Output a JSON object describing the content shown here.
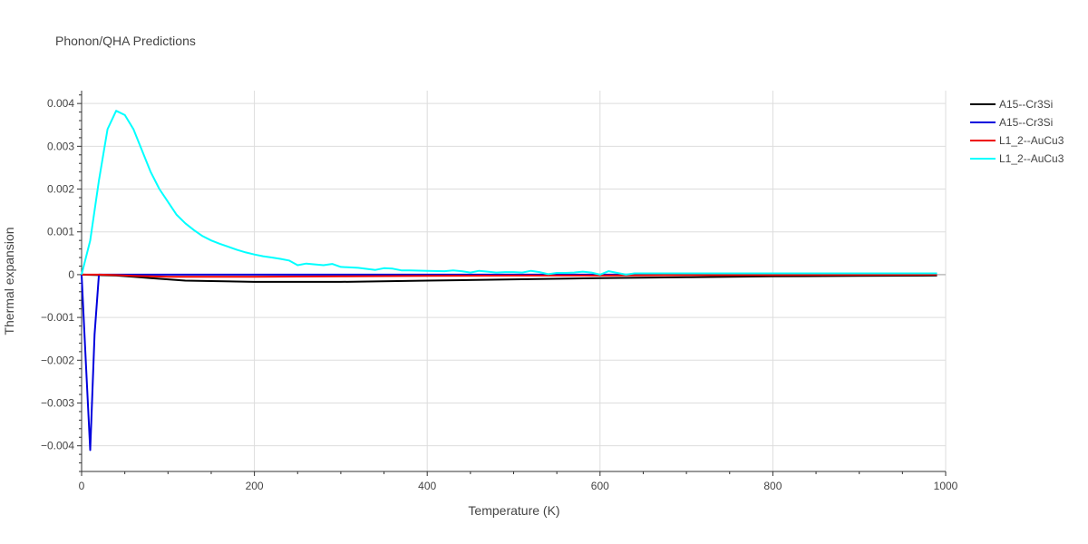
{
  "chart_data": {
    "type": "line",
    "title": "Phonon/QHA Predictions",
    "xlabel": "Temperature (K)",
    "ylabel": "Thermal expansion",
    "xlim": [
      0,
      1000
    ],
    "ylim": [
      -0.0046,
      0.0043
    ],
    "xticks": [
      0,
      200,
      400,
      600,
      800,
      1000
    ],
    "xtick_labels": [
      "0",
      "200",
      "400",
      "600",
      "800",
      "1000"
    ],
    "yticks": [
      0.004,
      0.003,
      0.002,
      0.001,
      0,
      -0.001,
      -0.002,
      -0.003,
      -0.004
    ],
    "ytick_labels": [
      "0.004",
      "0.003",
      "0.002",
      "0.001",
      "0",
      "−0.001",
      "−0.002",
      "−0.003",
      "−0.004"
    ],
    "grid": true,
    "legend_position": "top-right",
    "series": [
      {
        "name": "A15--Cr3Si",
        "color": "#000000",
        "x": [
          0,
          20,
          40,
          60,
          80,
          100,
          120,
          150,
          200,
          250,
          300,
          400,
          500,
          600,
          700,
          800,
          900,
          990
        ],
        "y": [
          0,
          -1e-05,
          -2e-05,
          -5e-05,
          -8e-05,
          -0.00011,
          -0.00014,
          -0.00015,
          -0.00017,
          -0.00017,
          -0.00017,
          -0.00014,
          -0.00011,
          -8e-05,
          -6e-05,
          -4e-05,
          -3e-05,
          -2e-05
        ]
      },
      {
        "name": "A15--Cr3Si",
        "color": "#0000dd",
        "x": [
          0,
          5,
          10,
          15,
          20,
          30,
          50,
          100,
          200,
          400,
          600,
          800,
          990
        ],
        "y": [
          0,
          -0.0021,
          -0.0041,
          -0.0014,
          0,
          0,
          0,
          0,
          0,
          0,
          0,
          0,
          0
        ]
      },
      {
        "name": "L1_2--AuCu3",
        "color": "#ee0000",
        "x": [
          0,
          20,
          40,
          60,
          80,
          100,
          150,
          200,
          300,
          400,
          500,
          600,
          700,
          800,
          990
        ],
        "y": [
          0,
          0,
          -1e-05,
          -3e-05,
          -4e-05,
          -5e-05,
          -5e-05,
          -5e-05,
          -4e-05,
          -3e-05,
          -2e-05,
          -2e-05,
          -1e-05,
          -1e-05,
          0
        ]
      },
      {
        "name": "L1_2--AuCu3",
        "color": "#00ffff",
        "x": [
          0,
          10,
          20,
          30,
          40,
          50,
          60,
          70,
          80,
          90,
          100,
          110,
          120,
          130,
          140,
          150,
          160,
          170,
          180,
          190,
          200,
          210,
          220,
          230,
          240,
          250,
          260,
          270,
          280,
          290,
          300,
          320,
          340,
          350,
          360,
          370,
          380,
          400,
          420,
          430,
          440,
          450,
          460,
          470,
          480,
          490,
          500,
          510,
          520,
          530,
          540,
          550,
          560,
          570,
          580,
          590,
          600,
          610,
          620,
          630,
          640,
          650,
          700,
          800,
          900,
          990
        ],
        "y": [
          0,
          0.0008,
          0.0022,
          0.0034,
          0.00383,
          0.00373,
          0.0034,
          0.0029,
          0.0024,
          0.002,
          0.0017,
          0.0014,
          0.0012,
          0.00104,
          0.0009,
          0.0008,
          0.00072,
          0.00065,
          0.00058,
          0.00052,
          0.00047,
          0.00043,
          0.0004,
          0.00037,
          0.00033,
          0.00022,
          0.00026,
          0.00024,
          0.00022,
          0.00025,
          0.00018,
          0.00016,
          0.00011,
          0.00015,
          0.00014,
          0.0001,
          0.0001,
          9e-05,
          8e-05,
          0.0001,
          8e-05,
          5e-05,
          9e-05,
          7e-05,
          5e-05,
          6e-05,
          6e-05,
          5e-05,
          9e-05,
          6e-05,
          1e-05,
          4e-05,
          4e-05,
          5e-05,
          7e-05,
          5e-05,
          0.0,
          8e-05,
          4e-05,
          0.0,
          3e-05,
          3e-05,
          3e-05,
          3e-05,
          3e-05,
          3e-05
        ]
      }
    ]
  }
}
